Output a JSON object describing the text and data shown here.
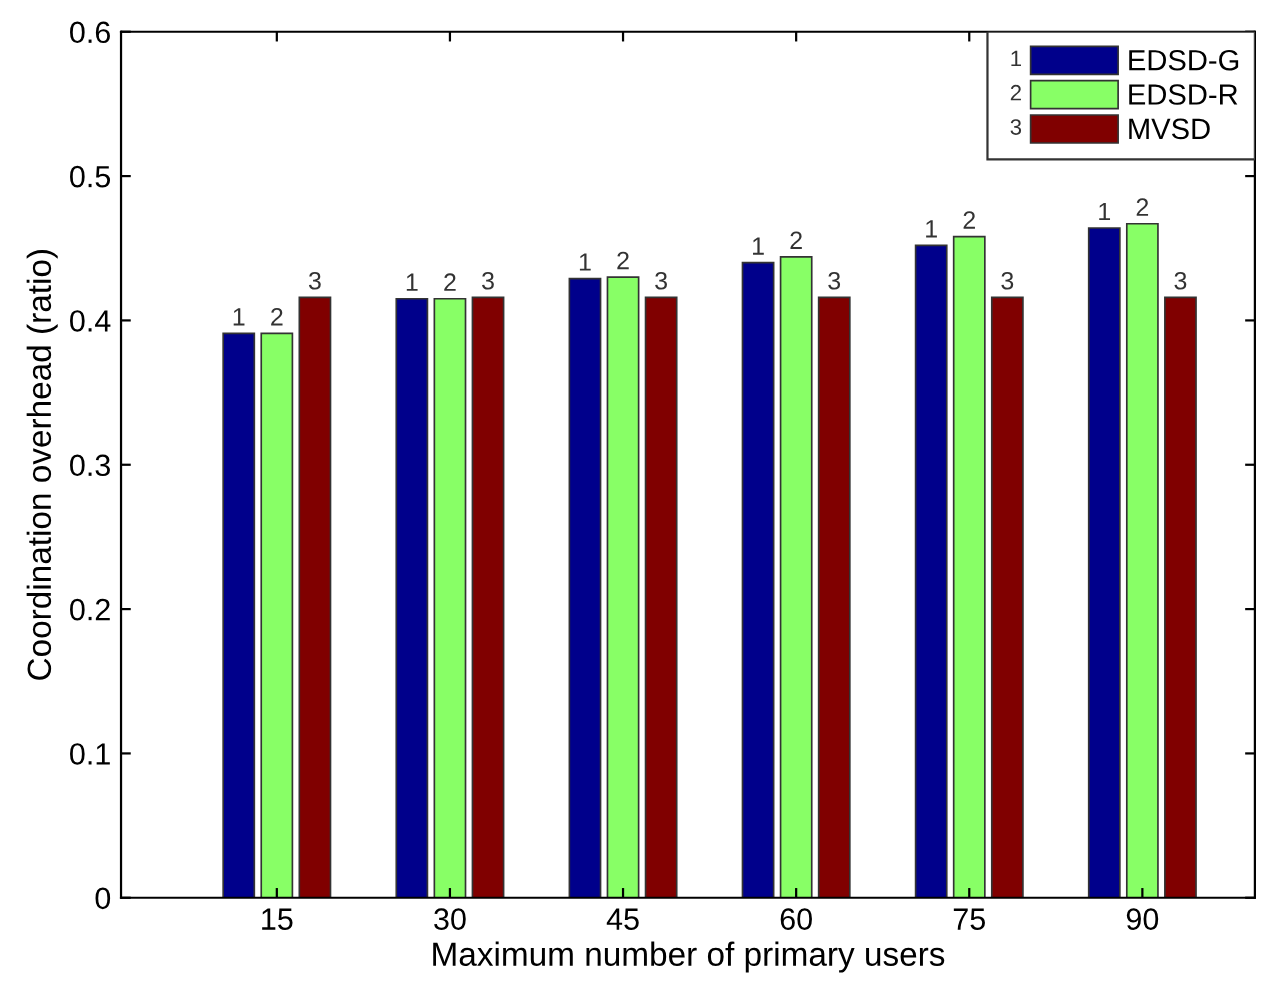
{
  "chart_data": {
    "type": "bar",
    "xlabel": "Maximum number of primary users",
    "ylabel": "Coordination overhead (ratio)",
    "categories": [
      "15",
      "30",
      "45",
      "60",
      "75",
      "90"
    ],
    "series": [
      {
        "name": "EDSD-G",
        "color": "#00008b",
        "values": [
          0.391,
          0.415,
          0.429,
          0.44,
          0.452,
          0.464
        ]
      },
      {
        "name": "EDSD-R",
        "color": "#88ff66",
        "values": [
          0.391,
          0.415,
          0.43,
          0.444,
          0.458,
          0.467
        ]
      },
      {
        "name": "MVSD",
        "color": "#800000",
        "values": [
          0.416,
          0.416,
          0.416,
          0.416,
          0.416,
          0.416
        ]
      }
    ],
    "annotations": [
      "1",
      "2",
      "3"
    ],
    "ylim": [
      0,
      0.6
    ],
    "yticks": [
      0,
      0.1,
      0.2,
      0.3,
      0.4,
      0.5,
      0.6
    ],
    "legend": "top right",
    "grid": false
  }
}
